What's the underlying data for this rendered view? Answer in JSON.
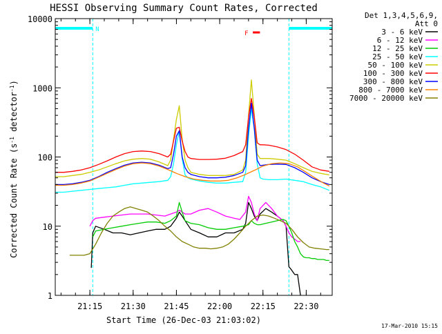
{
  "chart_data": {
    "type": "line",
    "title": "HESSI Observing Summary Count Rates, Corrected",
    "xlabel": "Start Time (26-Dec-03 21:03:02)",
    "ylabel": "Corrected Count Rate (s⁻¹ detector⁻¹)",
    "ylabel_main": "Corrected Count Rate (s",
    "ylabel_sup1": "-1",
    "ylabel_mid": " detector",
    "ylabel_sup2": "-1",
    "ylabel_end": ")",
    "yscale": "log",
    "ylim": [
      1,
      10000
    ],
    "xlim": [
      "21:03:02",
      "22:39:00"
    ],
    "x_ticks": [
      "21:15",
      "21:30",
      "21:45",
      "22:00",
      "22:15",
      "22:30"
    ],
    "x_tick_minutes": [
      12,
      27,
      42,
      57,
      72,
      87
    ],
    "xlim_minutes": [
      0,
      96
    ],
    "y_ticks": [
      "1",
      "10",
      "100",
      "1000",
      "10000"
    ],
    "y_tick_values": [
      1,
      10,
      100,
      1000,
      10000
    ],
    "legend_header": [
      "Det 1,3,4,5,6,9,",
      "Att 0"
    ],
    "legend_position": "right",
    "timestamp": "17-Mar-2010 15:15",
    "annotations": {
      "night_label": "N",
      "flare_label": "F",
      "night_intervals_minutes": [
        [
          0,
          13
        ],
        [
          81,
          96
        ]
      ],
      "flare_interval_minutes": [
        [
          68.5,
          70
        ]
      ]
    },
    "series": [
      {
        "name": "3 - 6 keV",
        "color": "#000000",
        "x": [
          5,
          6,
          7,
          8,
          10,
          12,
          12.5,
          13,
          14,
          17,
          20,
          23,
          26,
          29,
          32,
          35,
          38,
          40,
          42,
          43,
          44,
          45,
          47,
          50,
          53,
          56,
          59,
          62,
          65,
          66,
          67,
          68,
          69,
          70,
          71,
          73,
          75,
          77,
          79,
          80,
          81,
          82,
          83,
          84,
          85,
          86,
          87,
          88,
          89,
          90,
          91,
          92,
          93,
          94,
          95
        ],
        "y": [
          null,
          null,
          null,
          null,
          null,
          null,
          2.5,
          8,
          10,
          9,
          8,
          8,
          7.5,
          8,
          8.5,
          9,
          9,
          10,
          13,
          16,
          14,
          12,
          9,
          8,
          7,
          7,
          8,
          8,
          9,
          11,
          22,
          18,
          14,
          12,
          15,
          18,
          16,
          14,
          12,
          10,
          2.6,
          2.3,
          2.0,
          2.0,
          1.0,
          null,
          null,
          null,
          null,
          null,
          null,
          null,
          null,
          null,
          null
        ]
      },
      {
        "name": "6 - 12 keV",
        "color": "#ff00ff",
        "x": [
          12,
          13,
          14,
          17,
          20,
          23,
          26,
          29,
          32,
          35,
          38,
          40,
          42,
          43,
          44,
          45,
          47,
          50,
          53,
          56,
          59,
          62,
          64,
          66,
          67,
          68,
          69,
          70,
          71,
          73,
          75,
          77,
          79,
          80,
          81,
          82,
          83,
          84,
          85
        ],
        "y": [
          10,
          12,
          13,
          13.5,
          14,
          14.5,
          15,
          15,
          15,
          14.5,
          14,
          15,
          16,
          17,
          16,
          15,
          15,
          17,
          18,
          16,
          14,
          13,
          12.5,
          16,
          27,
          22,
          15,
          12,
          18,
          22,
          18,
          14,
          12,
          10,
          8,
          7,
          6.5,
          6,
          6
        ]
      },
      {
        "name": "12 - 25 keV",
        "color": "#00cc00",
        "x": [
          5,
          8,
          10,
          12,
          13,
          14,
          17,
          20,
          23,
          26,
          29,
          32,
          35,
          38,
          40,
          42,
          43,
          44,
          45,
          47,
          50,
          53,
          56,
          59,
          62,
          65,
          67,
          68,
          69,
          70,
          71,
          73,
          75,
          77,
          79,
          80,
          81,
          82,
          83,
          84,
          85,
          86,
          87,
          88,
          89,
          90,
          91,
          92,
          93,
          94,
          95
        ],
        "y": [
          null,
          null,
          null,
          null,
          7,
          8.5,
          9,
          9.5,
          10,
          10.5,
          11,
          11.5,
          11.5,
          11,
          12,
          14,
          22,
          16,
          12,
          11,
          10.5,
          9.5,
          9,
          9,
          9.5,
          10,
          10.5,
          12,
          11,
          10.5,
          10.5,
          11,
          11.5,
          12,
          12.5,
          12,
          10,
          8,
          6,
          5,
          4,
          3.6,
          3.5,
          3.5,
          3.4,
          3.4,
          3.3,
          3.3,
          3.3,
          3.2,
          3.2
        ]
      },
      {
        "name": "25 - 50 keV",
        "color": "#00ffff",
        "x": [
          0,
          3,
          6,
          9,
          12,
          15,
          18,
          21,
          24,
          27,
          30,
          33,
          36,
          39,
          40,
          41,
          42,
          43,
          44,
          45,
          46,
          47,
          50,
          53,
          56,
          59,
          62,
          65,
          66,
          67,
          68,
          69,
          70,
          71,
          72,
          74,
          77,
          80,
          83,
          86,
          89,
          92,
          95
        ],
        "y": [
          31,
          31,
          32,
          33,
          34,
          35,
          36,
          37,
          39,
          41,
          42,
          43,
          44,
          46,
          52,
          80,
          150,
          240,
          95,
          55,
          50,
          48,
          45,
          43,
          42,
          42,
          43,
          44,
          60,
          200,
          500,
          250,
          80,
          50,
          48,
          47,
          47,
          48,
          46,
          44,
          40,
          37,
          33
        ]
      },
      {
        "name": "50 - 100 keV",
        "color": "#cccc00",
        "x": [
          0,
          3,
          6,
          9,
          12,
          15,
          18,
          21,
          24,
          27,
          30,
          33,
          36,
          39,
          40,
          41,
          42,
          43,
          44,
          45,
          46,
          47,
          50,
          53,
          56,
          59,
          62,
          65,
          66,
          67,
          68,
          69,
          70,
          71,
          72,
          74,
          77,
          80,
          83,
          86,
          89,
          92,
          95
        ],
        "y": [
          52,
          52,
          54,
          56,
          60,
          65,
          72,
          80,
          88,
          93,
          95,
          93,
          85,
          75,
          90,
          180,
          350,
          550,
          180,
          90,
          70,
          60,
          56,
          54,
          54,
          54,
          56,
          65,
          90,
          400,
          1300,
          400,
          110,
          95,
          95,
          95,
          93,
          90,
          80,
          70,
          62,
          58,
          55
        ]
      },
      {
        "name": "100 - 300 keV",
        "color": "#ff0000",
        "x": [
          0,
          3,
          6,
          9,
          12,
          15,
          18,
          21,
          24,
          27,
          30,
          33,
          36,
          39,
          40,
          41,
          42,
          43,
          44,
          45,
          46,
          47,
          50,
          53,
          56,
          59,
          62,
          65,
          66,
          67,
          68,
          69,
          70,
          71,
          72,
          74,
          77,
          80,
          83,
          86,
          89,
          92,
          95
        ],
        "y": [
          60,
          60,
          62,
          65,
          70,
          78,
          88,
          100,
          112,
          120,
          122,
          120,
          112,
          100,
          110,
          170,
          260,
          270,
          170,
          120,
          100,
          95,
          92,
          92,
          93,
          96,
          105,
          120,
          150,
          380,
          700,
          380,
          160,
          150,
          150,
          148,
          140,
          128,
          110,
          90,
          72,
          65,
          62
        ]
      },
      {
        "name": "300 - 800 keV",
        "color": "#0000ff",
        "x": [
          0,
          3,
          6,
          9,
          12,
          15,
          18,
          21,
          24,
          27,
          30,
          33,
          36,
          39,
          40,
          41,
          42,
          43,
          44,
          45,
          46,
          47,
          50,
          53,
          56,
          59,
          62,
          65,
          66,
          67,
          68,
          69,
          70,
          71,
          72,
          74,
          77,
          80,
          83,
          86,
          89,
          92,
          95
        ],
        "y": [
          40,
          40,
          41,
          43,
          46,
          52,
          60,
          68,
          76,
          82,
          84,
          82,
          76,
          68,
          70,
          110,
          200,
          240,
          100,
          70,
          60,
          56,
          52,
          50,
          50,
          51,
          54,
          60,
          75,
          260,
          600,
          260,
          90,
          75,
          76,
          78,
          79,
          78,
          70,
          60,
          50,
          44,
          40
        ]
      },
      {
        "name": "800 - 7000 keV",
        "color": "#ff8000",
        "x": [
          0,
          3,
          6,
          9,
          12,
          15,
          18,
          21,
          24,
          27,
          30,
          33,
          36,
          39,
          42,
          45,
          48,
          51,
          54,
          57,
          60,
          63,
          66,
          69,
          72,
          75,
          78,
          81,
          84,
          87,
          90,
          93,
          95
        ],
        "y": [
          39,
          39,
          40,
          42,
          45,
          51,
          58,
          66,
          74,
          80,
          82,
          80,
          74,
          66,
          58,
          52,
          48,
          46,
          45,
          45,
          46,
          50,
          56,
          64,
          74,
          80,
          82,
          80,
          72,
          60,
          50,
          42,
          38
        ]
      },
      {
        "name": "7000 - 20000 keV",
        "color": "#808000",
        "x": [
          5,
          8,
          10,
          12,
          14,
          16,
          18,
          20,
          22,
          24,
          26,
          28,
          30,
          32,
          34,
          36,
          38,
          40,
          42,
          44,
          46,
          48,
          50,
          52,
          54,
          56,
          58,
          60,
          62,
          64,
          66,
          68,
          70,
          72,
          74,
          76,
          78,
          80,
          82,
          84,
          86,
          88,
          90,
          92,
          94,
          95
        ],
        "y": [
          3.8,
          3.8,
          3.8,
          4.0,
          5.5,
          8,
          11,
          14,
          16,
          18,
          19,
          18,
          17,
          16,
          14,
          12,
          10,
          8.5,
          7,
          6,
          5.5,
          5,
          4.8,
          4.8,
          4.7,
          4.8,
          5,
          5.5,
          6.5,
          8,
          10,
          12,
          14,
          14.5,
          14,
          13,
          12,
          11,
          9,
          7,
          5.8,
          5,
          4.8,
          4.7,
          4.6,
          4.6
        ]
      }
    ]
  }
}
